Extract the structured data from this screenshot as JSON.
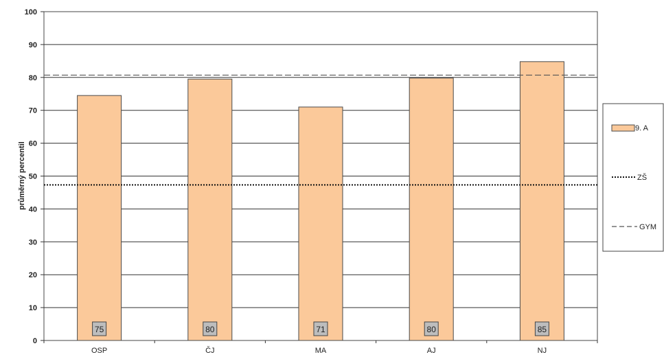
{
  "chart_data": {
    "type": "bar",
    "categories": [
      "OSP",
      "ČJ",
      "MA",
      "AJ",
      "NJ"
    ],
    "series": [
      {
        "name": "9. A",
        "values": [
          74.5,
          79.5,
          71,
          79.8,
          84.8
        ],
        "color": "#fbc99a"
      }
    ],
    "data_labels": [
      "75",
      "80",
      "71",
      "80",
      "85"
    ],
    "reference_lines": [
      {
        "name": "ZŠ",
        "value": 47.3,
        "style": "dotted"
      },
      {
        "name": "GYM",
        "value": 80.7,
        "style": "dashed"
      }
    ],
    "ylabel": "průměrný percentil",
    "xlabel": "",
    "ylim": [
      0,
      100
    ],
    "yticks": [
      0,
      10,
      20,
      30,
      40,
      50,
      60,
      70,
      80,
      90,
      100
    ],
    "grid": true,
    "legend_position": "right",
    "colors": {
      "bar_fill": "#fbc99a",
      "bar_stroke": "#4a4a4a",
      "label_box": "#bdbdbd",
      "grid": "#333333"
    }
  }
}
